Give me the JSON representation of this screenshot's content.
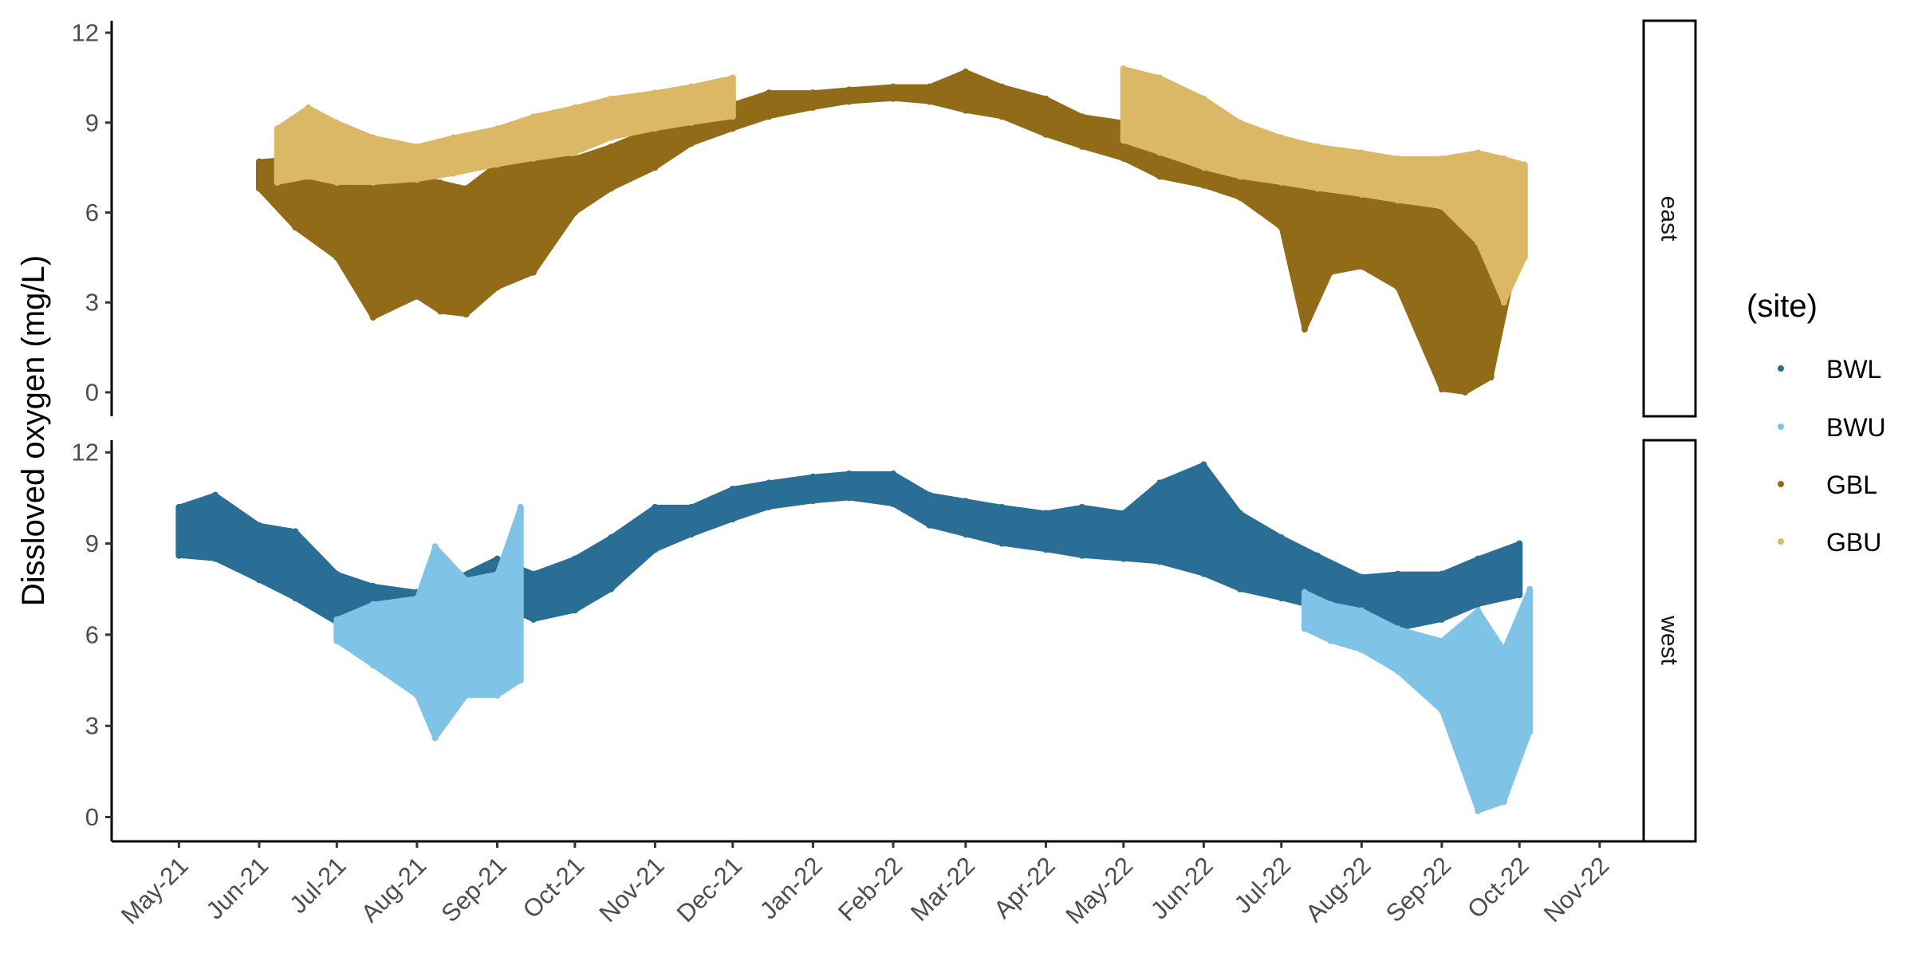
{
  "chart_data": {
    "type": "scatter",
    "ylabel": "Dissloved oxygen (mg/L)",
    "xlabel": "",
    "ylim": [
      -0.8,
      12.4
    ],
    "yticks": [
      0,
      3,
      6,
      9,
      12
    ],
    "x_range": [
      "2021-04-05",
      "2022-11-18"
    ],
    "x_ticks": [
      {
        "date": "2021-05-01",
        "label": "May-21"
      },
      {
        "date": "2021-06-01",
        "label": "Jun-21"
      },
      {
        "date": "2021-07-01",
        "label": "Jul-21"
      },
      {
        "date": "2021-08-01",
        "label": "Aug-21"
      },
      {
        "date": "2021-09-01",
        "label": "Sep-21"
      },
      {
        "date": "2021-10-01",
        "label": "Oct-21"
      },
      {
        "date": "2021-11-01",
        "label": "Nov-21"
      },
      {
        "date": "2021-12-01",
        "label": "Dec-21"
      },
      {
        "date": "2022-01-01",
        "label": "Jan-22"
      },
      {
        "date": "2022-02-01",
        "label": "Feb-22"
      },
      {
        "date": "2022-03-01",
        "label": "Mar-22"
      },
      {
        "date": "2022-04-01",
        "label": "Apr-22"
      },
      {
        "date": "2022-05-01",
        "label": "May-22"
      },
      {
        "date": "2022-06-01",
        "label": "Jun-22"
      },
      {
        "date": "2022-07-01",
        "label": "Jul-22"
      },
      {
        "date": "2022-08-01",
        "label": "Aug-22"
      },
      {
        "date": "2022-09-01",
        "label": "Sep-22"
      },
      {
        "date": "2022-10-01",
        "label": "Oct-22"
      },
      {
        "date": "2022-11-01",
        "label": "Nov-22"
      }
    ],
    "legend": {
      "title": "(site)",
      "position": "right"
    },
    "facets": [
      {
        "label": "east",
        "series": [
          {
            "name": "GBL",
            "color": "#926b19",
            "points": [
              {
                "date": "2021-06-01",
                "low": 6.8,
                "high": 7.7
              },
              {
                "date": "2021-06-15",
                "low": 5.5,
                "high": 7.8
              },
              {
                "date": "2021-07-01",
                "low": 4.5,
                "high": 7.2
              },
              {
                "date": "2021-07-15",
                "low": 2.5,
                "high": 7.0
              },
              {
                "date": "2021-08-01",
                "low": 3.2,
                "high": 7.2
              },
              {
                "date": "2021-08-10",
                "low": 2.7,
                "high": 7.0
              },
              {
                "date": "2021-08-20",
                "low": 2.6,
                "high": 6.8
              },
              {
                "date": "2021-09-01",
                "low": 3.5,
                "high": 7.6
              },
              {
                "date": "2021-09-15",
                "low": 4.0,
                "high": 7.9
              },
              {
                "date": "2021-10-01",
                "low": 6.0,
                "high": 7.8
              },
              {
                "date": "2021-10-15",
                "low": 6.8,
                "high": 8.2
              },
              {
                "date": "2021-11-01",
                "low": 7.5,
                "high": 8.8
              },
              {
                "date": "2021-11-15",
                "low": 8.3,
                "high": 9.2
              },
              {
                "date": "2021-12-01",
                "low": 8.8,
                "high": 9.6
              },
              {
                "date": "2021-12-15",
                "low": 9.2,
                "high": 10.0
              },
              {
                "date": "2022-01-01",
                "low": 9.5,
                "high": 10.0
              },
              {
                "date": "2022-01-15",
                "low": 9.7,
                "high": 10.1
              },
              {
                "date": "2022-02-01",
                "low": 9.8,
                "high": 10.2
              },
              {
                "date": "2022-02-15",
                "low": 9.7,
                "high": 10.2
              },
              {
                "date": "2022-03-01",
                "low": 9.4,
                "high": 10.7
              },
              {
                "date": "2022-03-15",
                "low": 9.2,
                "high": 10.2
              },
              {
                "date": "2022-04-01",
                "low": 8.6,
                "high": 9.8
              },
              {
                "date": "2022-04-15",
                "low": 8.2,
                "high": 9.2
              },
              {
                "date": "2022-05-01",
                "low": 7.8,
                "high": 9.0
              },
              {
                "date": "2022-05-15",
                "low": 7.2,
                "high": 8.5
              },
              {
                "date": "2022-06-01",
                "low": 6.9,
                "high": 7.8
              },
              {
                "date": "2022-06-15",
                "low": 6.5,
                "high": 7.6
              },
              {
                "date": "2022-07-01",
                "low": 5.5,
                "high": 7.4
              },
              {
                "date": "2022-07-10",
                "low": 2.1,
                "high": 7.2
              },
              {
                "date": "2022-07-20",
                "low": 4.0,
                "high": 7.0
              },
              {
                "date": "2022-08-01",
                "low": 4.2,
                "high": 6.8
              },
              {
                "date": "2022-08-15",
                "low": 3.5,
                "high": 6.6
              },
              {
                "date": "2022-09-01",
                "low": 0.1,
                "high": 6.0
              },
              {
                "date": "2022-09-10",
                "low": 0.0,
                "high": 5.8
              },
              {
                "date": "2022-09-20",
                "low": 0.5,
                "high": 6.5
              },
              {
                "date": "2022-10-01",
                "low": 5.0,
                "high": 7.0
              }
            ]
          },
          {
            "name": "GBU",
            "color": "#dbb865",
            "points": [
              {
                "date": "2021-06-08",
                "low": 7.0,
                "high": 8.8
              },
              {
                "date": "2021-06-20",
                "low": 7.2,
                "high": 9.5
              },
              {
                "date": "2021-07-01",
                "low": 7.0,
                "high": 9.0
              },
              {
                "date": "2021-07-15",
                "low": 7.0,
                "high": 8.5
              },
              {
                "date": "2021-08-01",
                "low": 7.1,
                "high": 8.2
              },
              {
                "date": "2021-08-15",
                "low": 7.3,
                "high": 8.5
              },
              {
                "date": "2021-09-01",
                "low": 7.6,
                "high": 8.8
              },
              {
                "date": "2021-09-15",
                "low": 7.8,
                "high": 9.2
              },
              {
                "date": "2021-10-01",
                "low": 8.0,
                "high": 9.5
              },
              {
                "date": "2021-10-15",
                "low": 8.5,
                "high": 9.8
              },
              {
                "date": "2021-11-01",
                "low": 8.8,
                "high": 10.0
              },
              {
                "date": "2021-11-15",
                "low": 9.0,
                "high": 10.2
              },
              {
                "date": "2021-12-01",
                "low": 9.2,
                "high": 10.5
              },
              {
                "date": "2022-05-01",
                "low": 8.4,
                "high": 10.8
              },
              {
                "date": "2022-05-15",
                "low": 8.0,
                "high": 10.5
              },
              {
                "date": "2022-06-01",
                "low": 7.5,
                "high": 9.8
              },
              {
                "date": "2022-06-15",
                "low": 7.2,
                "high": 9.0
              },
              {
                "date": "2022-07-01",
                "low": 7.0,
                "high": 8.5
              },
              {
                "date": "2022-07-15",
                "low": 6.8,
                "high": 8.2
              },
              {
                "date": "2022-08-01",
                "low": 6.6,
                "high": 8.0
              },
              {
                "date": "2022-08-15",
                "low": 6.4,
                "high": 7.8
              },
              {
                "date": "2022-09-01",
                "low": 6.2,
                "high": 7.8
              },
              {
                "date": "2022-09-15",
                "low": 5.0,
                "high": 8.0
              },
              {
                "date": "2022-09-25",
                "low": 3.0,
                "high": 7.8
              },
              {
                "date": "2022-10-03",
                "low": 4.5,
                "high": 7.6
              }
            ]
          }
        ]
      },
      {
        "label": "west",
        "series": [
          {
            "name": "BWL",
            "color": "#2a6e96",
            "points": [
              {
                "date": "2021-05-01",
                "low": 8.6,
                "high": 10.2
              },
              {
                "date": "2021-05-15",
                "low": 8.5,
                "high": 10.6
              },
              {
                "date": "2021-06-01",
                "low": 7.8,
                "high": 9.6
              },
              {
                "date": "2021-06-15",
                "low": 7.2,
                "high": 9.4
              },
              {
                "date": "2021-07-01",
                "low": 6.4,
                "high": 8.0
              },
              {
                "date": "2021-07-15",
                "low": 6.8,
                "high": 7.6
              },
              {
                "date": "2021-08-01",
                "low": 6.6,
                "high": 7.4
              },
              {
                "date": "2021-08-15",
                "low": 6.8,
                "high": 7.8
              },
              {
                "date": "2021-09-01",
                "low": 7.0,
                "high": 8.5
              },
              {
                "date": "2021-09-15",
                "low": 6.5,
                "high": 8.0
              },
              {
                "date": "2021-10-01",
                "low": 6.8,
                "high": 8.5
              },
              {
                "date": "2021-10-15",
                "low": 7.5,
                "high": 9.2
              },
              {
                "date": "2021-11-01",
                "low": 8.8,
                "high": 10.2
              },
              {
                "date": "2021-11-15",
                "low": 9.3,
                "high": 10.2
              },
              {
                "date": "2021-12-01",
                "low": 9.8,
                "high": 10.8
              },
              {
                "date": "2021-12-15",
                "low": 10.2,
                "high": 11.0
              },
              {
                "date": "2022-01-01",
                "low": 10.4,
                "high": 11.2
              },
              {
                "date": "2022-01-15",
                "low": 10.5,
                "high": 11.3
              },
              {
                "date": "2022-02-01",
                "low": 10.3,
                "high": 11.3
              },
              {
                "date": "2022-02-15",
                "low": 9.6,
                "high": 10.6
              },
              {
                "date": "2022-03-01",
                "low": 9.3,
                "high": 10.4
              },
              {
                "date": "2022-03-15",
                "low": 9.0,
                "high": 10.2
              },
              {
                "date": "2022-04-01",
                "low": 8.8,
                "high": 10.0
              },
              {
                "date": "2022-04-15",
                "low": 8.6,
                "high": 10.2
              },
              {
                "date": "2022-05-01",
                "low": 8.5,
                "high": 10.0
              },
              {
                "date": "2022-05-15",
                "low": 8.4,
                "high": 11.0
              },
              {
                "date": "2022-06-01",
                "low": 8.0,
                "high": 11.6
              },
              {
                "date": "2022-06-15",
                "low": 7.5,
                "high": 10.0
              },
              {
                "date": "2022-07-01",
                "low": 7.2,
                "high": 9.2
              },
              {
                "date": "2022-07-15",
                "low": 6.9,
                "high": 8.6
              },
              {
                "date": "2022-08-01",
                "low": 6.5,
                "high": 7.9
              },
              {
                "date": "2022-08-15",
                "low": 6.2,
                "high": 8.0
              },
              {
                "date": "2022-09-01",
                "low": 6.5,
                "high": 8.0
              },
              {
                "date": "2022-09-15",
                "low": 7.0,
                "high": 8.5
              },
              {
                "date": "2022-10-01",
                "low": 7.3,
                "high": 9.0
              }
            ]
          },
          {
            "name": "BWU",
            "color": "#7fc3e7",
            "points": [
              {
                "date": "2021-07-01",
                "low": 5.8,
                "high": 6.5
              },
              {
                "date": "2021-07-15",
                "low": 5.0,
                "high": 7.0
              },
              {
                "date": "2021-08-01",
                "low": 4.0,
                "high": 7.2
              },
              {
                "date": "2021-08-08",
                "low": 2.6,
                "high": 8.9
              },
              {
                "date": "2021-08-20",
                "low": 4.0,
                "high": 7.8
              },
              {
                "date": "2021-09-01",
                "low": 4.0,
                "high": 8.0
              },
              {
                "date": "2021-09-10",
                "low": 4.5,
                "high": 10.2
              },
              {
                "date": "2022-07-10",
                "low": 6.2,
                "high": 7.4
              },
              {
                "date": "2022-07-20",
                "low": 5.8,
                "high": 7.0
              },
              {
                "date": "2022-08-01",
                "low": 5.5,
                "high": 6.8
              },
              {
                "date": "2022-08-15",
                "low": 4.8,
                "high": 6.2
              },
              {
                "date": "2022-09-01",
                "low": 3.5,
                "high": 5.8
              },
              {
                "date": "2022-09-15",
                "low": 0.2,
                "high": 6.8
              },
              {
                "date": "2022-09-25",
                "low": 0.5,
                "high": 5.5
              },
              {
                "date": "2022-10-05",
                "low": 2.8,
                "high": 7.5
              }
            ]
          }
        ]
      }
    ]
  }
}
